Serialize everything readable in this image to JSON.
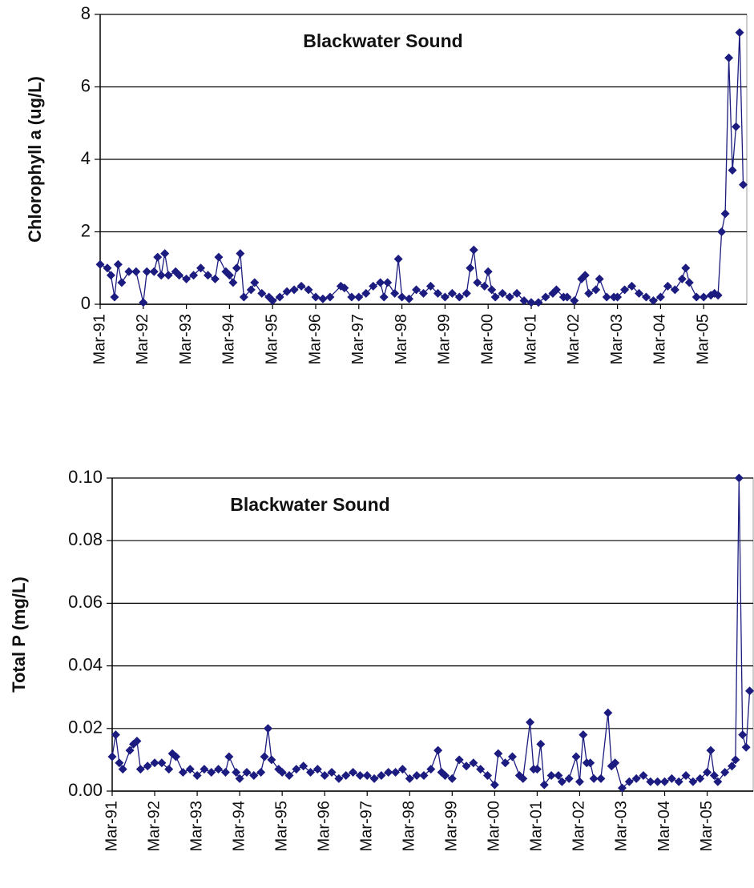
{
  "chart_data": [
    {
      "type": "line",
      "title": "Blackwater Sound",
      "ylabel": "Chlorophyll a (ug/L)",
      "color": "#1c1c80",
      "grid": true,
      "xlim": [
        "Mar-91",
        "Mar-06"
      ],
      "xticks": [
        "Mar-91",
        "Mar-92",
        "Mar-93",
        "Mar-94",
        "Mar-95",
        "Mar-96",
        "Mar-97",
        "Mar-98",
        "Mar-99",
        "Mar-00",
        "Mar-01",
        "Mar-02",
        "Mar-03",
        "Mar-04",
        "Mar-05"
      ],
      "ylim": [
        0,
        8
      ],
      "yticks": [
        0,
        2,
        4,
        6,
        8
      ],
      "x": [
        "Mar-91",
        "May-91",
        "Jun-91",
        "Jul-91",
        "Aug-91",
        "Sep-91",
        "Nov-91",
        "Jan-92",
        "Mar-92",
        "Apr-92",
        "Jun-92",
        "Jul-92",
        "Aug-92",
        "Sep-92",
        "Oct-92",
        "Dec-92",
        "Jan-93",
        "Mar-93",
        "May-93",
        "Jul-93",
        "Sep-93",
        "Nov-93",
        "Dec-93",
        "Feb-94",
        "Mar-94",
        "Apr-94",
        "May-94",
        "Jun-94",
        "Jul-94",
        "Sep-94",
        "Oct-94",
        "Dec-94",
        "Feb-95",
        "Mar-95",
        "May-95",
        "Jul-95",
        "Sep-95",
        "Nov-95",
        "Jan-96",
        "Mar-96",
        "May-96",
        "Jul-96",
        "Oct-96",
        "Nov-96",
        "Jan-97",
        "Mar-97",
        "May-97",
        "Jul-97",
        "Sep-97",
        "Oct-97",
        "Nov-97",
        "Jan-98",
        "Feb-98",
        "Mar-98",
        "May-98",
        "Jul-98",
        "Sep-98",
        "Nov-98",
        "Jan-99",
        "Mar-99",
        "May-99",
        "Jul-99",
        "Sep-99",
        "Oct-99",
        "Nov-99",
        "Dec-99",
        "Feb-00",
        "Mar-00",
        "Apr-00",
        "May-00",
        "Jul-00",
        "Sep-00",
        "Nov-00",
        "Jan-01",
        "Mar-01",
        "May-01",
        "Jul-01",
        "Sep-01",
        "Oct-01",
        "Dec-01",
        "Jan-02",
        "Mar-02",
        "May-02",
        "Jun-02",
        "Jul-02",
        "Sep-02",
        "Oct-02",
        "Dec-02",
        "Feb-03",
        "Mar-03",
        "May-03",
        "Jul-03",
        "Sep-03",
        "Nov-03",
        "Jan-04",
        "Mar-04",
        "May-04",
        "Jul-04",
        "Sep-04",
        "Oct-04",
        "Nov-04",
        "Jan-05",
        "Mar-05",
        "May-05",
        "Jun-05",
        "Jul-05",
        "Aug-05",
        "Sep-05",
        "Oct-05",
        "Nov-05",
        "Dec-05",
        "Jan-06",
        "Feb-06"
      ],
      "values": [
        1.1,
        1.0,
        0.8,
        0.2,
        1.1,
        0.6,
        0.9,
        0.9,
        0.05,
        0.9,
        0.9,
        1.3,
        0.8,
        1.4,
        0.8,
        0.9,
        0.8,
        0.7,
        0.8,
        1.0,
        0.8,
        0.7,
        1.3,
        0.9,
        0.8,
        0.6,
        1.0,
        1.4,
        0.2,
        0.4,
        0.6,
        0.3,
        0.2,
        0.1,
        0.2,
        0.35,
        0.4,
        0.5,
        0.4,
        0.2,
        0.15,
        0.2,
        0.5,
        0.45,
        0.2,
        0.2,
        0.3,
        0.5,
        0.6,
        0.2,
        0.6,
        0.3,
        1.25,
        0.2,
        0.15,
        0.4,
        0.3,
        0.5,
        0.3,
        0.2,
        0.3,
        0.2,
        0.3,
        1.0,
        1.5,
        0.6,
        0.5,
        0.9,
        0.4,
        0.2,
        0.3,
        0.2,
        0.3,
        0.1,
        0.05,
        0.05,
        0.2,
        0.3,
        0.4,
        0.2,
        0.2,
        0.1,
        0.7,
        0.8,
        0.3,
        0.4,
        0.7,
        0.2,
        0.2,
        0.2,
        0.4,
        0.5,
        0.3,
        0.2,
        0.1,
        0.2,
        0.5,
        0.4,
        0.7,
        1.0,
        0.6,
        0.2,
        0.2,
        0.25,
        0.3,
        0.25,
        2.0,
        2.5,
        6.8,
        3.7,
        4.9,
        7.5,
        3.3
      ]
    },
    {
      "type": "line",
      "title": "Blackwater Sound",
      "ylabel": "Total P (mg/L)",
      "color": "#1c1c80",
      "grid": true,
      "xlim": [
        "Mar-91",
        "Apr-06"
      ],
      "xticks": [
        "Mar-91",
        "Mar-92",
        "Mar-93",
        "Mar-94",
        "Mar-95",
        "Mar-96",
        "Mar-97",
        "Mar-98",
        "Mar-99",
        "Mar-00",
        "Mar-01",
        "Mar-02",
        "Mar-03",
        "Mar-04",
        "Mar-05"
      ],
      "ylim": [
        0,
        0.1
      ],
      "yticks": [
        {
          "value": 0,
          "label": "0.00"
        },
        {
          "value": 0.02,
          "label": "0.02"
        },
        {
          "value": 0.04,
          "label": "0.04"
        },
        {
          "value": 0.06,
          "label": "0.06"
        },
        {
          "value": 0.08,
          "label": "0.08"
        },
        {
          "value": 0.1,
          "label": "0.10"
        }
      ],
      "x": [
        "Mar-91",
        "Apr-91",
        "May-91",
        "Jun-91",
        "Aug-91",
        "Sep-91",
        "Oct-91",
        "Nov-91",
        "Jan-92",
        "Mar-92",
        "May-92",
        "Jul-92",
        "Aug-92",
        "Sep-92",
        "Nov-92",
        "Jan-93",
        "Mar-93",
        "May-93",
        "Jul-93",
        "Sep-93",
        "Nov-93",
        "Dec-93",
        "Feb-94",
        "Mar-94",
        "May-94",
        "Jul-94",
        "Sep-94",
        "Oct-94",
        "Nov-94",
        "Dec-94",
        "Feb-95",
        "Mar-95",
        "May-95",
        "Jul-95",
        "Sep-95",
        "Nov-95",
        "Jan-96",
        "Mar-96",
        "May-96",
        "Jul-96",
        "Sep-96",
        "Nov-96",
        "Jan-97",
        "Mar-97",
        "May-97",
        "Jul-97",
        "Sep-97",
        "Nov-97",
        "Jan-98",
        "Mar-98",
        "May-98",
        "Jul-98",
        "Sep-98",
        "Nov-98",
        "Dec-98",
        "Jan-99",
        "Mar-99",
        "May-99",
        "Jul-99",
        "Sep-99",
        "Nov-99",
        "Jan-00",
        "Mar-00",
        "Apr-00",
        "Jun-00",
        "Aug-00",
        "Oct-00",
        "Nov-00",
        "Jan-01",
        "Feb-01",
        "Mar-01",
        "Apr-01",
        "May-01",
        "Jul-01",
        "Sep-01",
        "Oct-01",
        "Dec-01",
        "Feb-02",
        "Mar-02",
        "Apr-02",
        "May-02",
        "Jun-02",
        "Jul-02",
        "Sep-02",
        "Nov-02",
        "Dec-02",
        "Jan-03",
        "Mar-03",
        "May-03",
        "Jul-03",
        "Sep-03",
        "Nov-03",
        "Jan-04",
        "Mar-04",
        "May-04",
        "Jul-04",
        "Sep-04",
        "Nov-04",
        "Jan-05",
        "Mar-05",
        "Apr-05",
        "May-05",
        "Jun-05",
        "Aug-05",
        "Oct-05",
        "Nov-05",
        "Dec-05",
        "Jan-06",
        "Feb-06",
        "Mar-06"
      ],
      "values": [
        0.011,
        0.018,
        0.009,
        0.007,
        0.013,
        0.015,
        0.016,
        0.007,
        0.008,
        0.009,
        0.009,
        0.007,
        0.012,
        0.011,
        0.006,
        0.007,
        0.005,
        0.007,
        0.006,
        0.007,
        0.006,
        0.011,
        0.006,
        0.004,
        0.006,
        0.005,
        0.006,
        0.011,
        0.02,
        0.01,
        0.007,
        0.006,
        0.005,
        0.007,
        0.008,
        0.006,
        0.007,
        0.005,
        0.006,
        0.004,
        0.005,
        0.006,
        0.005,
        0.005,
        0.004,
        0.005,
        0.006,
        0.006,
        0.007,
        0.004,
        0.005,
        0.005,
        0.007,
        0.013,
        0.006,
        0.005,
        0.004,
        0.01,
        0.008,
        0.009,
        0.007,
        0.005,
        0.002,
        0.012,
        0.009,
        0.011,
        0.005,
        0.004,
        0.022,
        0.007,
        0.007,
        0.015,
        0.002,
        0.005,
        0.005,
        0.003,
        0.004,
        0.011,
        0.003,
        0.018,
        0.009,
        0.009,
        0.004,
        0.004,
        0.025,
        0.008,
        0.009,
        0.001,
        0.003,
        0.004,
        0.005,
        0.003,
        0.003,
        0.003,
        0.004,
        0.003,
        0.005,
        0.003,
        0.004,
        0.006,
        0.013,
        0.005,
        0.003,
        0.006,
        0.008,
        0.01,
        0.1,
        0.018,
        0.014,
        0.032
      ]
    }
  ]
}
